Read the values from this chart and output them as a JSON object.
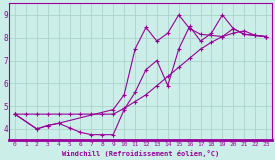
{
  "xlabel": "Windchill (Refroidissement éolien,°C)",
  "bg_color": "#cceee8",
  "grid_color": "#aad4cc",
  "line_color": "#990099",
  "xlim": [
    -0.5,
    23.5
  ],
  "ylim": [
    3.5,
    9.5
  ],
  "yticks": [
    4,
    5,
    6,
    7,
    8,
    9
  ],
  "xticks": [
    0,
    1,
    2,
    3,
    4,
    5,
    6,
    7,
    8,
    9,
    10,
    11,
    12,
    13,
    14,
    15,
    16,
    17,
    18,
    19,
    20,
    21,
    22,
    23
  ],
  "series1_x": [
    0,
    1,
    2,
    3,
    4,
    5,
    6,
    7,
    8,
    9,
    10,
    11,
    12,
    13,
    14,
    15,
    16,
    17,
    18,
    19,
    20,
    21,
    22,
    23
  ],
  "series1_y": [
    4.65,
    4.65,
    4.65,
    4.65,
    4.65,
    4.65,
    4.65,
    4.65,
    4.65,
    4.65,
    4.9,
    5.2,
    5.5,
    5.9,
    6.3,
    6.7,
    7.1,
    7.5,
    7.8,
    8.05,
    8.2,
    8.3,
    8.1,
    8.05
  ],
  "series2_x": [
    0,
    2,
    3,
    4,
    5,
    6,
    7,
    8,
    9,
    10,
    11,
    12,
    13,
    14,
    15,
    16,
    17,
    18,
    19,
    20,
    21,
    22,
    23
  ],
  "series2_y": [
    4.65,
    4.0,
    4.15,
    4.25,
    4.05,
    3.85,
    3.75,
    3.75,
    3.75,
    4.85,
    5.6,
    6.6,
    7.0,
    5.9,
    7.5,
    8.5,
    7.85,
    8.2,
    9.0,
    8.4,
    8.15,
    8.1,
    8.05
  ],
  "series3_x": [
    0,
    2,
    3,
    4,
    9,
    10,
    11,
    12,
    13,
    14,
    15,
    16,
    17,
    18,
    19,
    20,
    21,
    22,
    23
  ],
  "series3_y": [
    4.65,
    4.0,
    4.15,
    4.25,
    4.85,
    5.5,
    7.5,
    8.45,
    7.85,
    8.2,
    9.0,
    8.4,
    8.15,
    8.1,
    8.05,
    8.4,
    8.15,
    8.1,
    8.05
  ]
}
